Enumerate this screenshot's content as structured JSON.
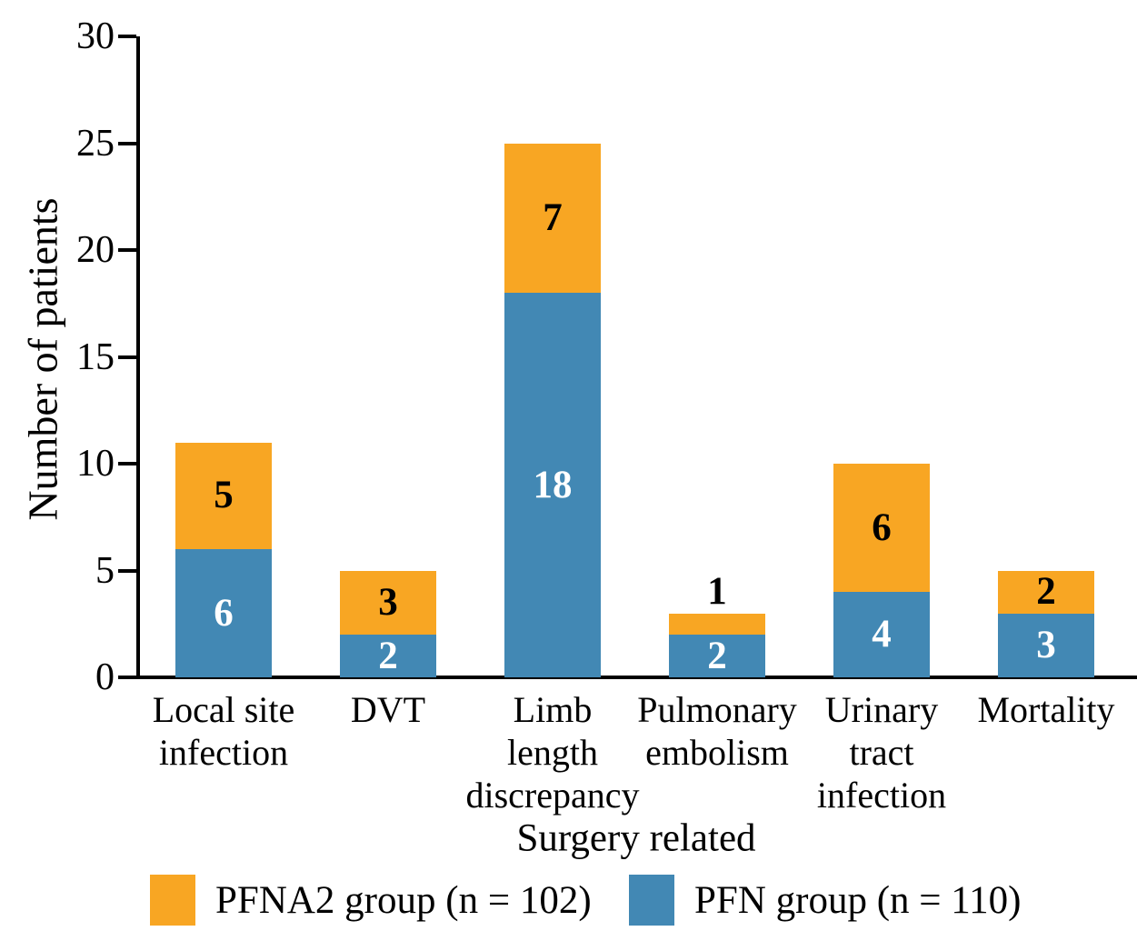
{
  "chart_data": {
    "type": "bar",
    "subtype": "stacked-vertical",
    "title": "",
    "xlabel": "Surgery related",
    "ylabel": "Number of patients",
    "ylim": [
      0,
      30
    ],
    "yticks": [
      "0",
      "5",
      "10",
      "15",
      "20",
      "25",
      "30"
    ],
    "grid": false,
    "legend_position": "bottom",
    "categories": [
      "Local site\ninfection",
      "DVT",
      "Limb\nlength\ndiscrepancy",
      "Pulmonary\nembolism",
      "Urinary\ntract\ninfection",
      "Mortality"
    ],
    "series": [
      {
        "name": "PFN group (n = 110)",
        "color": "#4288B4",
        "label_color": "#ffffff",
        "values": [
          6,
          2,
          18,
          2,
          4,
          3
        ]
      },
      {
        "name": "PFNA2 group (n = 102)",
        "color": "#F8A623",
        "label_color": "#000000",
        "values": [
          5,
          3,
          7,
          1,
          6,
          2
        ]
      }
    ],
    "totals": [
      11,
      5,
      25,
      3,
      10,
      5
    ],
    "legend": [
      {
        "label": "PFNA2 group (n = 102)",
        "color": "#F8A623"
      },
      {
        "label": "PFN group (n = 110)",
        "color": "#4288B4"
      }
    ]
  }
}
